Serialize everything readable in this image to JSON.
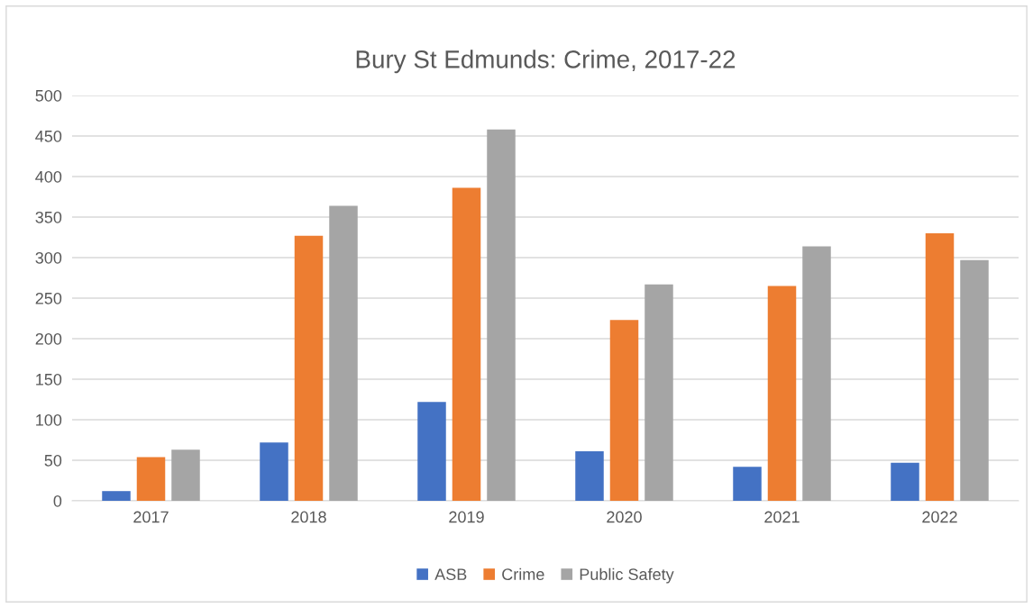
{
  "chart_data": {
    "type": "bar",
    "title": "Bury St Edmunds: Crime, 2017-22",
    "categories": [
      "2017",
      "2018",
      "2019",
      "2020",
      "2021",
      "2022"
    ],
    "series": [
      {
        "name": "ASB",
        "color": "#4472c4",
        "values": [
          12,
          72,
          122,
          61,
          42,
          47
        ]
      },
      {
        "name": "Crime",
        "color": "#ed7d31",
        "values": [
          54,
          327,
          386,
          223,
          265,
          330
        ]
      },
      {
        "name": "Public Safety",
        "color": "#a5a5a5",
        "values": [
          63,
          364,
          458,
          267,
          314,
          297
        ]
      }
    ],
    "ylim": [
      0,
      500
    ],
    "yticks": [
      0,
      50,
      100,
      150,
      200,
      250,
      300,
      350,
      400,
      450,
      500
    ],
    "grid": "y",
    "legend": "bottom"
  }
}
